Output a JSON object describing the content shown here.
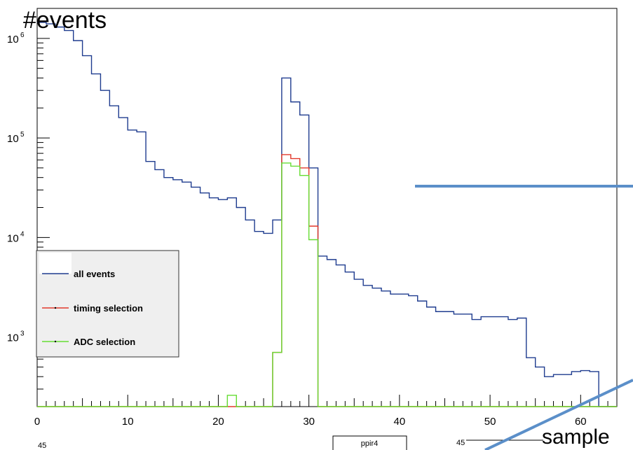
{
  "chart_data": {
    "type": "histogram",
    "ylabel": "#events",
    "xlabel": "sample",
    "xlim": [
      0,
      64
    ],
    "ylim": [
      200,
      2000000
    ],
    "y_scale": "log",
    "x_ticks": [
      0,
      10,
      20,
      30,
      40,
      50,
      60
    ],
    "y_ticks": [
      {
        "value": 1000,
        "label": "10",
        "exp": "3"
      },
      {
        "value": 10000,
        "label": "10",
        "exp": "4"
      },
      {
        "value": 100000,
        "label": "10",
        "exp": "5"
      },
      {
        "value": 1000000,
        "label": "10",
        "exp": "6"
      }
    ],
    "legend_position": "lower-left",
    "bin_edges": [
      0,
      1,
      2,
      3,
      4,
      5,
      6,
      7,
      8,
      9,
      10,
      11,
      12,
      13,
      14,
      15,
      16,
      17,
      18,
      19,
      20,
      21,
      22,
      23,
      24,
      25,
      26,
      27,
      28,
      29,
      30,
      31,
      32,
      33,
      34,
      35,
      36,
      37,
      38,
      39,
      40,
      41,
      42,
      43,
      44,
      45,
      46,
      47,
      48,
      49,
      50,
      51,
      52,
      53,
      54,
      55,
      56,
      57,
      58,
      59,
      60,
      61,
      62,
      63,
      64
    ],
    "series": [
      {
        "name": "all events",
        "color": "#1f3c8f",
        "values": [
          1450000,
          1400000,
          1300000,
          1200000,
          950000,
          670000,
          440000,
          300000,
          210000,
          160000,
          120000,
          115000,
          58000,
          48000,
          40000,
          38000,
          36000,
          32000,
          28000,
          25000,
          24000,
          25000,
          20000,
          15000,
          11500,
          11000,
          15000,
          400000,
          230000,
          170000,
          50000,
          6500,
          6000,
          5300,
          4500,
          3800,
          3300,
          3100,
          2900,
          2700,
          2700,
          2600,
          2300,
          2000,
          1800,
          1800,
          1700,
          1700,
          1500,
          1600,
          1600,
          1600,
          1500,
          1550,
          620,
          500,
          400,
          420,
          420,
          450,
          460,
          450,
          200,
          200
        ]
      },
      {
        "name": "timing selection",
        "color": "#e2382b",
        "values": [
          0,
          0,
          0,
          0,
          0,
          0,
          0,
          0,
          0,
          0,
          0,
          0,
          0,
          0,
          0,
          0,
          0,
          0,
          0,
          0,
          0,
          0,
          0,
          0,
          0,
          0,
          700,
          68000,
          62000,
          50000,
          13000,
          0,
          0,
          0,
          0,
          0,
          0,
          0,
          0,
          0,
          0,
          0,
          0,
          0,
          0,
          0,
          0,
          0,
          0,
          0,
          0,
          0,
          0,
          0,
          0,
          0,
          0,
          0,
          0,
          0,
          0,
          0,
          0,
          0
        ]
      },
      {
        "name": "ADC selection",
        "color": "#66dd33",
        "values": [
          0,
          0,
          0,
          0,
          0,
          0,
          0,
          0,
          0,
          0,
          0,
          0,
          0,
          0,
          0,
          0,
          0,
          0,
          0,
          0,
          0,
          260,
          0,
          0,
          0,
          0,
          700,
          56000,
          52000,
          42000,
          9500,
          0,
          0,
          0,
          0,
          0,
          0,
          0,
          0,
          0,
          0,
          0,
          0,
          0,
          0,
          0,
          0,
          0,
          0,
          0,
          0,
          0,
          0,
          0,
          0,
          0,
          0,
          0,
          0,
          0,
          0,
          0,
          0,
          0
        ]
      }
    ],
    "annotations": {
      "overlay_color": "#5b8fc9",
      "bottom_texts": [
        "ppir4",
        "45",
        "45"
      ]
    }
  }
}
